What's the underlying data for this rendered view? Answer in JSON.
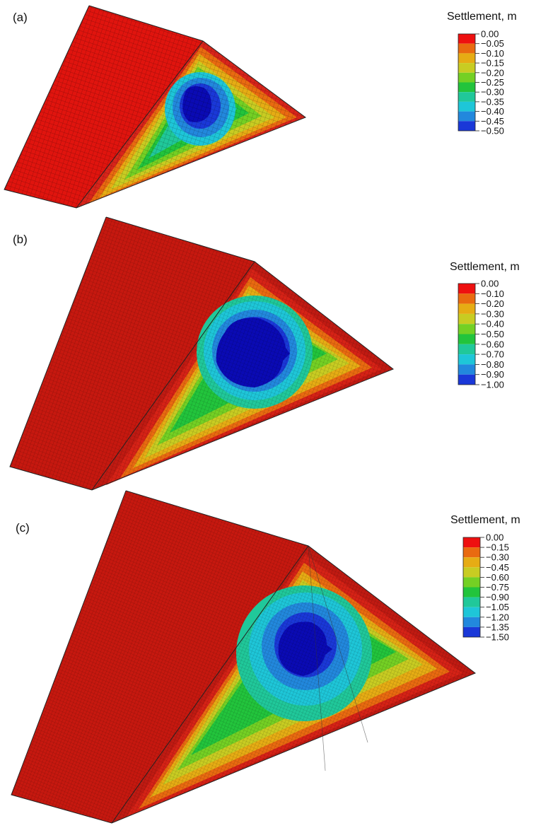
{
  "panels": [
    {
      "id": "a",
      "label": "(a)",
      "legend_title": "Settlement, m",
      "ticks": [
        "0.00",
        "−0.05",
        "−0.10",
        "−0.15",
        "−0.20",
        "−0.25",
        "−0.30",
        "−0.35",
        "−0.40",
        "−0.45",
        "−0.50"
      ]
    },
    {
      "id": "b",
      "label": "(b)",
      "legend_title": "Settlement, m",
      "ticks": [
        "0.00",
        "−0.10",
        "−0.20",
        "−0.30",
        "−0.40",
        "−0.50",
        "−0.60",
        "−0.70",
        "−0.80",
        "−0.90",
        "−1.00"
      ]
    },
    {
      "id": "c",
      "label": "(c)",
      "legend_title": "Settlement, m",
      "ticks": [
        "0.00",
        "−0.15",
        "−0.30",
        "−0.45",
        "−0.60",
        "−0.75",
        "−0.90",
        "−1.05",
        "−1.20",
        "−1.35",
        "−1.50"
      ]
    }
  ],
  "colormap": [
    "#ee1010",
    "#e96a10",
    "#e6ac14",
    "#c8cc22",
    "#74d024",
    "#22c43c",
    "#20c89a",
    "#1ec6d8",
    "#2288dd",
    "#1a38d8",
    "#0a0ab4"
  ],
  "mesh_color": "#c01a12"
}
